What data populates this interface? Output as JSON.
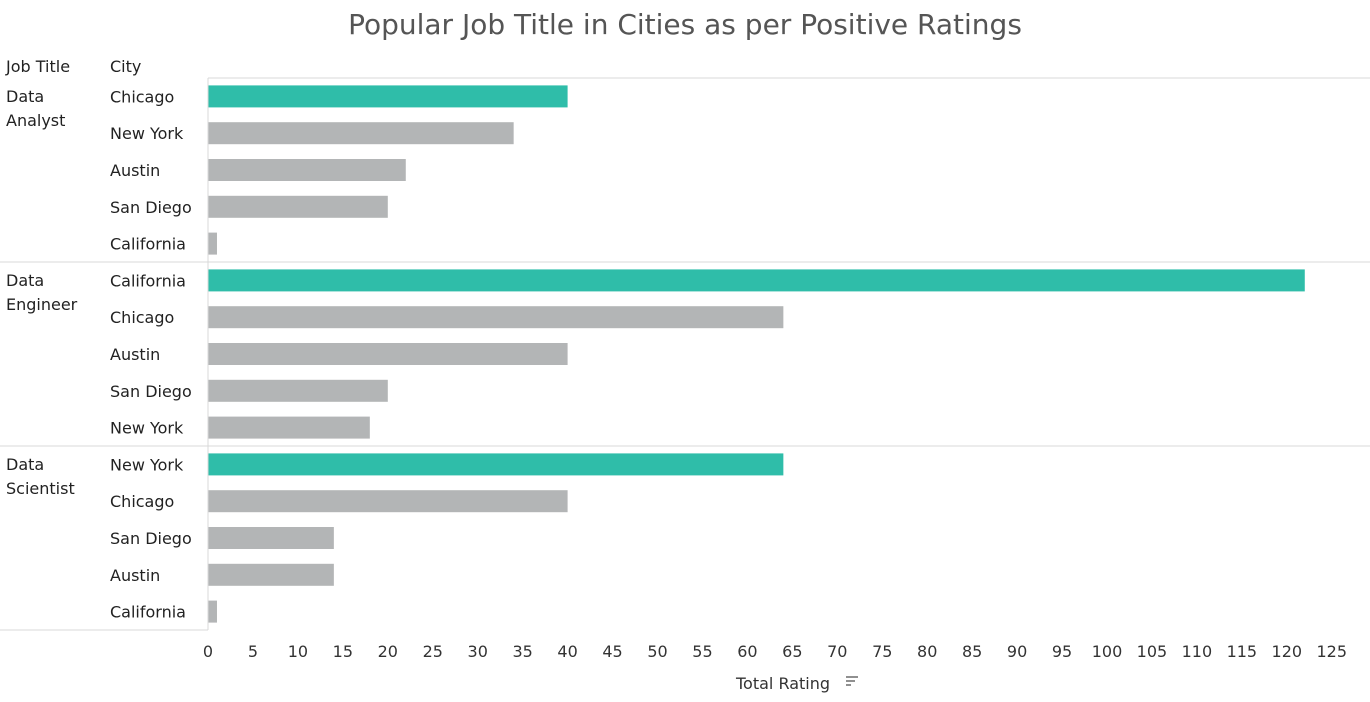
{
  "chart_data": {
    "type": "bar",
    "orientation": "horizontal",
    "title": "Popular Job Title in Cities as per Positive Ratings",
    "row_headers": [
      "Job Title",
      "City"
    ],
    "xlabel": "Total Rating",
    "xlim": [
      0,
      127
    ],
    "x_ticks": [
      0,
      5,
      10,
      15,
      20,
      25,
      30,
      35,
      40,
      45,
      50,
      55,
      60,
      65,
      70,
      75,
      80,
      85,
      90,
      95,
      100,
      105,
      110,
      115,
      120,
      125
    ],
    "grid": false,
    "sorted": "descending within job title",
    "colors": {
      "top": "#2fbda9",
      "other": "#b3b5b6"
    },
    "groups": [
      {
        "name": "Data Analyst",
        "name_lines": [
          "Data",
          "Analyst"
        ],
        "bars": [
          {
            "city": "Chicago",
            "value": 40,
            "top": true
          },
          {
            "city": "New York",
            "value": 34
          },
          {
            "city": "Austin",
            "value": 22
          },
          {
            "city": "San Diego",
            "value": 20
          },
          {
            "city": "California",
            "value": 1
          }
        ]
      },
      {
        "name": "Data Engineer",
        "name_lines": [
          "Data",
          "Engineer"
        ],
        "bars": [
          {
            "city": "California",
            "value": 122,
            "top": true
          },
          {
            "city": "Chicago",
            "value": 64
          },
          {
            "city": "Austin",
            "value": 40
          },
          {
            "city": "San Diego",
            "value": 20
          },
          {
            "city": "New York",
            "value": 18
          }
        ]
      },
      {
        "name": "Data Scientist",
        "name_lines": [
          "Data",
          "Scientist"
        ],
        "bars": [
          {
            "city": "New York",
            "value": 64,
            "top": true
          },
          {
            "city": "Chicago",
            "value": 40
          },
          {
            "city": "San Diego",
            "value": 14
          },
          {
            "city": "Austin",
            "value": 14
          },
          {
            "city": "California",
            "value": 1
          }
        ]
      }
    ]
  }
}
